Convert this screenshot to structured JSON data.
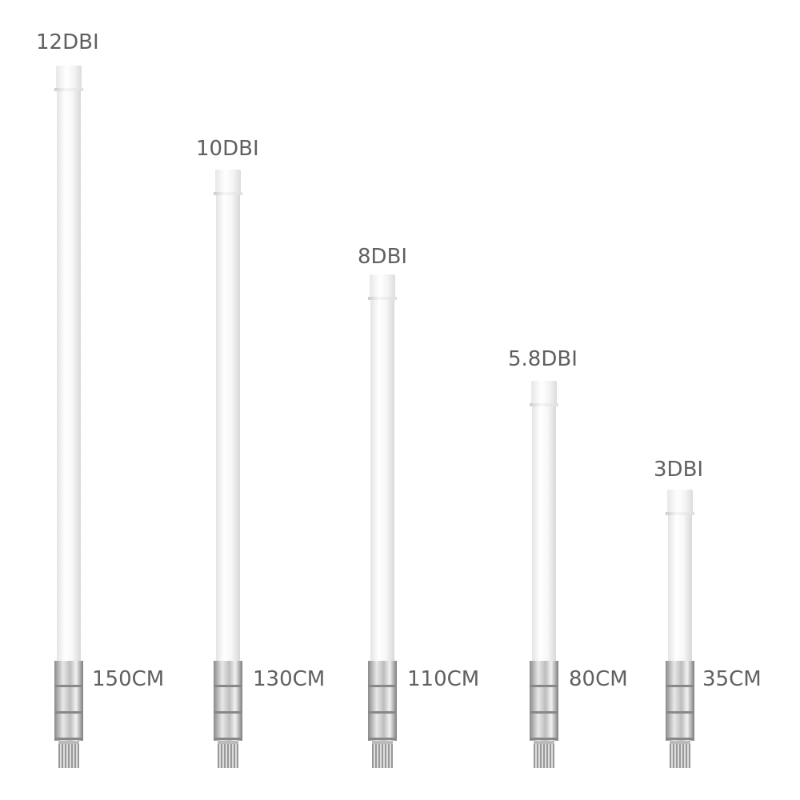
{
  "antennas": [
    {
      "gain": "12DBI",
      "length": "150CM"
    },
    {
      "gain": "10DBI",
      "length": "130CM"
    },
    {
      "gain": "8DBI",
      "length": "110CM"
    },
    {
      "gain": "5.8DBI",
      "length": "80CM"
    },
    {
      "gain": "3DBI",
      "length": "35CM"
    }
  ],
  "colors": {
    "text": "#606060",
    "radome": "#ffffff",
    "connector": "#b8b8b8"
  }
}
